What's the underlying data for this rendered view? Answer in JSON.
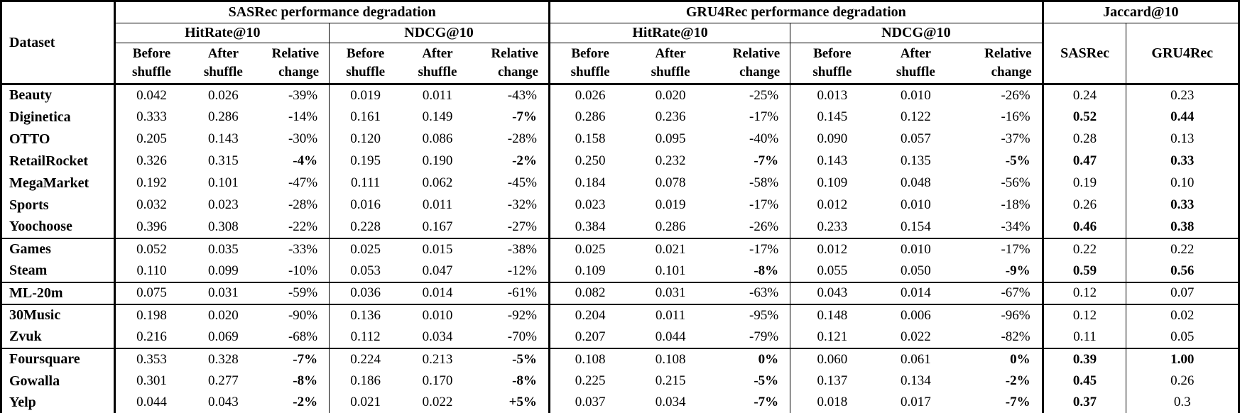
{
  "header": {
    "dataset_label": "Dataset",
    "sasrec_group": "SASRec performance degradation",
    "gru4rec_group": "GRU4Rec performance degradation",
    "jaccard_group": "Jaccard@10",
    "hitrate_label": "HitRate@10",
    "ndcg_label": "NDCG@10",
    "before_l1": "Before",
    "before_l2": "shuffle",
    "after_l1": "After",
    "after_l2": "shuffle",
    "rel_l1": "Relative",
    "rel_l2": "change",
    "jaccard_sasrec": "SASRec",
    "jaccard_gru4rec": "GRU4Rec"
  },
  "rows": [
    {
      "dataset": "Beauty",
      "values": [
        "0.042",
        "0.026",
        "-39%",
        "0.019",
        "0.011",
        "-43%",
        "0.026",
        "0.020",
        "-25%",
        "0.013",
        "0.010",
        "-26%",
        "0.24",
        "0.23"
      ],
      "bold": [],
      "section_start": false
    },
    {
      "dataset": "Diginetica",
      "values": [
        "0.333",
        "0.286",
        "-14%",
        "0.161",
        "0.149",
        "-7%",
        "0.286",
        "0.236",
        "-17%",
        "0.145",
        "0.122",
        "-16%",
        "0.52",
        "0.44"
      ],
      "bold": [
        5,
        12,
        13
      ],
      "section_start": false
    },
    {
      "dataset": "OTTO",
      "values": [
        "0.205",
        "0.143",
        "-30%",
        "0.120",
        "0.086",
        "-28%",
        "0.158",
        "0.095",
        "-40%",
        "0.090",
        "0.057",
        "-37%",
        "0.28",
        "0.13"
      ],
      "bold": [],
      "section_start": false
    },
    {
      "dataset": "RetailRocket",
      "values": [
        "0.326",
        "0.315",
        "-4%",
        "0.195",
        "0.190",
        "-2%",
        "0.250",
        "0.232",
        "-7%",
        "0.143",
        "0.135",
        "-5%",
        "0.47",
        "0.33"
      ],
      "bold": [
        2,
        5,
        8,
        11,
        12,
        13
      ],
      "section_start": false
    },
    {
      "dataset": "MegaMarket",
      "values": [
        "0.192",
        "0.101",
        "-47%",
        "0.111",
        "0.062",
        "-45%",
        "0.184",
        "0.078",
        "-58%",
        "0.109",
        "0.048",
        "-56%",
        "0.19",
        "0.10"
      ],
      "bold": [],
      "section_start": false
    },
    {
      "dataset": "Sports",
      "values": [
        "0.032",
        "0.023",
        "-28%",
        "0.016",
        "0.011",
        "-32%",
        "0.023",
        "0.019",
        "-17%",
        "0.012",
        "0.010",
        "-18%",
        "0.26",
        "0.33"
      ],
      "bold": [
        13
      ],
      "section_start": false
    },
    {
      "dataset": "Yoochoose",
      "values": [
        "0.396",
        "0.308",
        "-22%",
        "0.228",
        "0.167",
        "-27%",
        "0.384",
        "0.286",
        "-26%",
        "0.233",
        "0.154",
        "-34%",
        "0.46",
        "0.38"
      ],
      "bold": [
        12,
        13
      ],
      "section_start": false
    },
    {
      "dataset": "Games",
      "values": [
        "0.052",
        "0.035",
        "-33%",
        "0.025",
        "0.015",
        "-38%",
        "0.025",
        "0.021",
        "-17%",
        "0.012",
        "0.010",
        "-17%",
        "0.22",
        "0.22"
      ],
      "bold": [],
      "section_start": true
    },
    {
      "dataset": "Steam",
      "values": [
        "0.110",
        "0.099",
        "-10%",
        "0.053",
        "0.047",
        "-12%",
        "0.109",
        "0.101",
        "-8%",
        "0.055",
        "0.050",
        "-9%",
        "0.59",
        "0.56"
      ],
      "bold": [
        8,
        11,
        12,
        13
      ],
      "section_start": false
    },
    {
      "dataset": "ML-20m",
      "values": [
        "0.075",
        "0.031",
        "-59%",
        "0.036",
        "0.014",
        "-61%",
        "0.082",
        "0.031",
        "-63%",
        "0.043",
        "0.014",
        "-67%",
        "0.12",
        "0.07"
      ],
      "bold": [],
      "section_start": true
    },
    {
      "dataset": "30Music",
      "values": [
        "0.198",
        "0.020",
        "-90%",
        "0.136",
        "0.010",
        "-92%",
        "0.204",
        "0.011",
        "-95%",
        "0.148",
        "0.006",
        "-96%",
        "0.12",
        "0.02"
      ],
      "bold": [],
      "section_start": true
    },
    {
      "dataset": "Zvuk",
      "values": [
        "0.216",
        "0.069",
        "-68%",
        "0.112",
        "0.034",
        "-70%",
        "0.207",
        "0.044",
        "-79%",
        "0.121",
        "0.022",
        "-82%",
        "0.11",
        "0.05"
      ],
      "bold": [],
      "section_start": false
    },
    {
      "dataset": "Foursquare",
      "values": [
        "0.353",
        "0.328",
        "-7%",
        "0.224",
        "0.213",
        "-5%",
        "0.108",
        "0.108",
        "0%",
        "0.060",
        "0.061",
        "0%",
        "0.39",
        "1.00"
      ],
      "bold": [
        2,
        5,
        8,
        11,
        12,
        13
      ],
      "section_start": true
    },
    {
      "dataset": "Gowalla",
      "values": [
        "0.301",
        "0.277",
        "-8%",
        "0.186",
        "0.170",
        "-8%",
        "0.225",
        "0.215",
        "-5%",
        "0.137",
        "0.134",
        "-2%",
        "0.45",
        "0.26"
      ],
      "bold": [
        2,
        5,
        8,
        11,
        12
      ],
      "section_start": false
    },
    {
      "dataset": "Yelp",
      "values": [
        "0.044",
        "0.043",
        "-2%",
        "0.021",
        "0.022",
        "+5%",
        "0.037",
        "0.034",
        "-7%",
        "0.018",
        "0.017",
        "-7%",
        "0.37",
        "0.3"
      ],
      "bold": [
        2,
        5,
        8,
        11,
        12
      ],
      "section_start": false
    }
  ]
}
